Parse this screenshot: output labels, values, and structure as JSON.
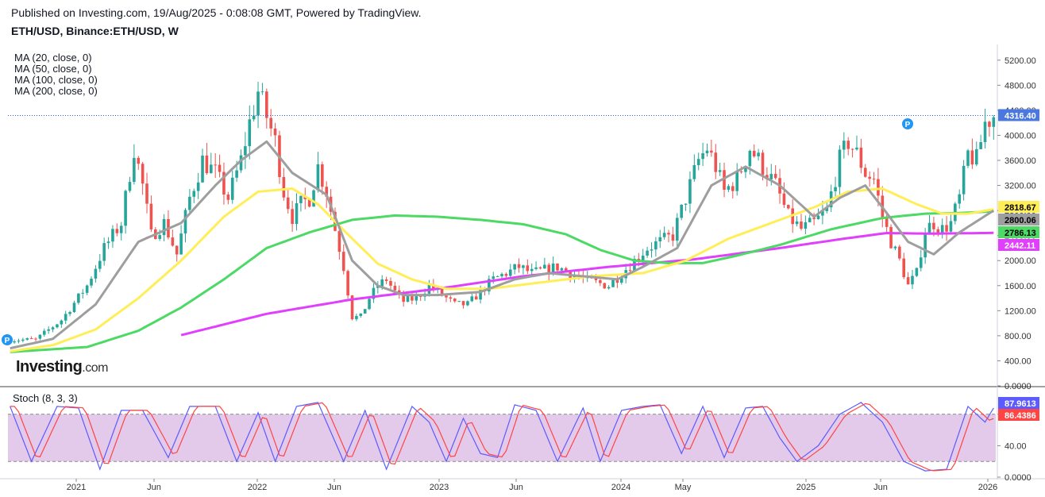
{
  "header": {
    "published": "Published on Investing.com, 19/Aug/2025 - 0:08:08 GMT, Powered by TradingView.",
    "symbol": "ETH/USD, Binance:ETH/USD, W"
  },
  "legend": {
    "ma": [
      "MA (20, close, 0)",
      "MA (50, close, 0)",
      "MA (100, close, 0)",
      "MA (200, close, 0)"
    ],
    "stoch": "Stoch (8, 3, 3)"
  },
  "logo": {
    "main": "Investing",
    "suffix": ".com"
  },
  "colors": {
    "up": "#26a69a",
    "down": "#ef5350",
    "ma20": "#9e9e9e",
    "ma50": "#ffee58",
    "ma100": "#4cd964",
    "ma200": "#e040fb",
    "stochK": "#5b5bff",
    "stochD": "#ff4444",
    "stochBand": "#d9b8e3",
    "priceLabel": "#4a78e0"
  },
  "chart_data": {
    "type": "candlestick",
    "y_axis": {
      "min": 0,
      "max": 5400,
      "ticks": [
        "5200.00",
        "4800.00",
        "4400.00",
        "4000.00",
        "3600.00",
        "3200.00",
        "2800.00",
        "2400.00",
        "2000.00",
        "1600.00",
        "1200.00",
        "800.00",
        "400.00",
        "0.0000"
      ]
    },
    "x_axis_labels": [
      "2021",
      "Jun",
      "2022",
      "Jun",
      "2023",
      "Jun",
      "2024",
      "May",
      "2025",
      "Jun",
      "2026"
    ],
    "last_price": "4316.40",
    "ma_values": {
      "ma50": "2818.67",
      "ma20": "2800.06",
      "ma100": "2786.13",
      "ma200": "2442.11"
    },
    "close_anchors": [
      [
        0,
        730
      ],
      [
        6,
        740
      ],
      [
        12,
        1050
      ],
      [
        18,
        1600
      ],
      [
        22,
        2200
      ],
      [
        26,
        2600
      ],
      [
        29,
        3800
      ],
      [
        31,
        3200
      ],
      [
        33,
        2400
      ],
      [
        36,
        2600
      ],
      [
        39,
        2100
      ],
      [
        42,
        3000
      ],
      [
        45,
        3600
      ],
      [
        48,
        3400
      ],
      [
        51,
        3000
      ],
      [
        54,
        3600
      ],
      [
        56,
        4200
      ],
      [
        58,
        4700
      ],
      [
        60,
        4300
      ],
      [
        62,
        3900
      ],
      [
        64,
        3100
      ],
      [
        66,
        2700
      ],
      [
        68,
        2900
      ],
      [
        70,
        3000
      ],
      [
        72,
        3500
      ],
      [
        74,
        3100
      ],
      [
        76,
        2500
      ],
      [
        78,
        1900
      ],
      [
        80,
        1100
      ],
      [
        82,
        1100
      ],
      [
        84,
        1400
      ],
      [
        86,
        1600
      ],
      [
        88,
        1700
      ],
      [
        90,
        1500
      ],
      [
        92,
        1350
      ],
      [
        95,
        1400
      ],
      [
        98,
        1600
      ],
      [
        101,
        1450
      ],
      [
        104,
        1300
      ],
      [
        107,
        1300
      ],
      [
        110,
        1500
      ],
      [
        113,
        1700
      ],
      [
        116,
        1800
      ],
      [
        119,
        1900
      ],
      [
        122,
        1800
      ],
      [
        125,
        1850
      ],
      [
        128,
        1900
      ],
      [
        131,
        1800
      ],
      [
        134,
        1700
      ],
      [
        137,
        1650
      ],
      [
        140,
        1600
      ],
      [
        143,
        1800
      ],
      [
        146,
        2000
      ],
      [
        149,
        2200
      ],
      [
        152,
        2300
      ],
      [
        155,
        2400
      ],
      [
        158,
        3000
      ],
      [
        161,
        3600
      ],
      [
        163,
        3800
      ],
      [
        165,
        3500
      ],
      [
        167,
        3100
      ],
      [
        170,
        3300
      ],
      [
        173,
        3800
      ],
      [
        176,
        3500
      ],
      [
        179,
        3200
      ],
      [
        182,
        2700
      ],
      [
        185,
        2500
      ],
      [
        188,
        2600
      ],
      [
        191,
        2800
      ],
      [
        194,
        3600
      ],
      [
        196,
        3900
      ],
      [
        198,
        3700
      ],
      [
        200,
        3400
      ],
      [
        202,
        3300
      ],
      [
        204,
        2700
      ],
      [
        206,
        2300
      ],
      [
        208,
        2000
      ],
      [
        210,
        1600
      ],
      [
        212,
        1800
      ],
      [
        214,
        2500
      ],
      [
        216,
        2600
      ],
      [
        218,
        2500
      ],
      [
        220,
        2600
      ],
      [
        222,
        3000
      ],
      [
        224,
        3700
      ],
      [
        226,
        3600
      ],
      [
        228,
        4200
      ],
      [
        230,
        4316.4
      ]
    ],
    "ma_anchors": {
      "ma20": [
        [
          0,
          600
        ],
        [
          10,
          750
        ],
        [
          20,
          1300
        ],
        [
          30,
          2300
        ],
        [
          40,
          2600
        ],
        [
          48,
          3200
        ],
        [
          54,
          3600
        ],
        [
          60,
          3900
        ],
        [
          66,
          3400
        ],
        [
          74,
          3050
        ],
        [
          80,
          2000
        ],
        [
          86,
          1600
        ],
        [
          92,
          1450
        ],
        [
          100,
          1450
        ],
        [
          110,
          1500
        ],
        [
          118,
          1700
        ],
        [
          126,
          1800
        ],
        [
          134,
          1750
        ],
        [
          142,
          1700
        ],
        [
          148,
          1900
        ],
        [
          156,
          2200
        ],
        [
          164,
          3200
        ],
        [
          172,
          3500
        ],
        [
          180,
          3200
        ],
        [
          188,
          2700
        ],
        [
          194,
          3000
        ],
        [
          200,
          3200
        ],
        [
          204,
          2850
        ],
        [
          210,
          2300
        ],
        [
          216,
          2100
        ],
        [
          222,
          2450
        ],
        [
          230,
          2800.06
        ]
      ],
      "ma50": [
        [
          0,
          550
        ],
        [
          10,
          650
        ],
        [
          20,
          900
        ],
        [
          30,
          1400
        ],
        [
          40,
          2000
        ],
        [
          50,
          2700
        ],
        [
          58,
          3100
        ],
        [
          66,
          3150
        ],
        [
          72,
          2900
        ],
        [
          80,
          2350
        ],
        [
          86,
          1950
        ],
        [
          94,
          1700
        ],
        [
          102,
          1550
        ],
        [
          112,
          1550
        ],
        [
          124,
          1650
        ],
        [
          136,
          1750
        ],
        [
          148,
          1800
        ],
        [
          158,
          2000
        ],
        [
          168,
          2350
        ],
        [
          178,
          2600
        ],
        [
          188,
          2850
        ],
        [
          196,
          3100
        ],
        [
          204,
          3150
        ],
        [
          212,
          2900
        ],
        [
          218,
          2750
        ],
        [
          224,
          2750
        ],
        [
          230,
          2818.67
        ]
      ],
      "ma100": [
        [
          0,
          540
        ],
        [
          18,
          620
        ],
        [
          30,
          880
        ],
        [
          40,
          1250
        ],
        [
          50,
          1700
        ],
        [
          60,
          2200
        ],
        [
          70,
          2450
        ],
        [
          80,
          2650
        ],
        [
          90,
          2720
        ],
        [
          100,
          2700
        ],
        [
          110,
          2650
        ],
        [
          120,
          2580
        ],
        [
          130,
          2420
        ],
        [
          138,
          2170
        ],
        [
          146,
          2000
        ],
        [
          154,
          1960
        ],
        [
          162,
          1960
        ],
        [
          170,
          2080
        ],
        [
          180,
          2250
        ],
        [
          192,
          2500
        ],
        [
          204,
          2680
        ],
        [
          214,
          2750
        ],
        [
          222,
          2760
        ],
        [
          230,
          2786.13
        ]
      ],
      "ma200": [
        [
          40,
          810
        ],
        [
          60,
          1150
        ],
        [
          80,
          1380
        ],
        [
          100,
          1550
        ],
        [
          120,
          1750
        ],
        [
          140,
          1900
        ],
        [
          160,
          2020
        ],
        [
          180,
          2200
        ],
        [
          195,
          2350
        ],
        [
          205,
          2440
        ],
        [
          215,
          2430
        ],
        [
          230,
          2442.11
        ]
      ]
    },
    "stoch": {
      "y_ticks": [
        "80.00",
        "40.00",
        "0.0000"
      ],
      "band": [
        20,
        80
      ],
      "values": {
        "k": "87.9613",
        "d": "86.4386"
      },
      "k_anchors": [
        [
          0,
          90
        ],
        [
          5,
          20
        ],
        [
          11,
          90
        ],
        [
          16,
          88
        ],
        [
          21,
          10
        ],
        [
          26,
          85
        ],
        [
          31,
          85
        ],
        [
          37,
          25
        ],
        [
          42,
          90
        ],
        [
          48,
          90
        ],
        [
          53,
          20
        ],
        [
          58,
          82
        ],
        [
          62,
          20
        ],
        [
          67,
          90
        ],
        [
          72,
          95
        ],
        [
          78,
          20
        ],
        [
          83,
          85
        ],
        [
          88,
          10
        ],
        [
          94,
          90
        ],
        [
          98,
          70
        ],
        [
          102,
          20
        ],
        [
          106,
          75
        ],
        [
          110,
          30
        ],
        [
          114,
          25
        ],
        [
          118,
          92
        ],
        [
          123,
          85
        ],
        [
          128,
          20
        ],
        [
          134,
          88
        ],
        [
          138,
          20
        ],
        [
          143,
          85
        ],
        [
          148,
          90
        ],
        [
          152,
          92
        ],
        [
          157,
          30
        ],
        [
          162,
          90
        ],
        [
          167,
          25
        ],
        [
          172,
          88
        ],
        [
          176,
          90
        ],
        [
          180,
          50
        ],
        [
          184,
          20
        ],
        [
          189,
          40
        ],
        [
          194,
          80
        ],
        [
          199,
          95
        ],
        [
          204,
          70
        ],
        [
          209,
          20
        ],
        [
          214,
          8
        ],
        [
          219,
          10
        ],
        [
          224,
          90
        ],
        [
          228,
          70
        ],
        [
          230,
          88
        ]
      ]
    }
  }
}
